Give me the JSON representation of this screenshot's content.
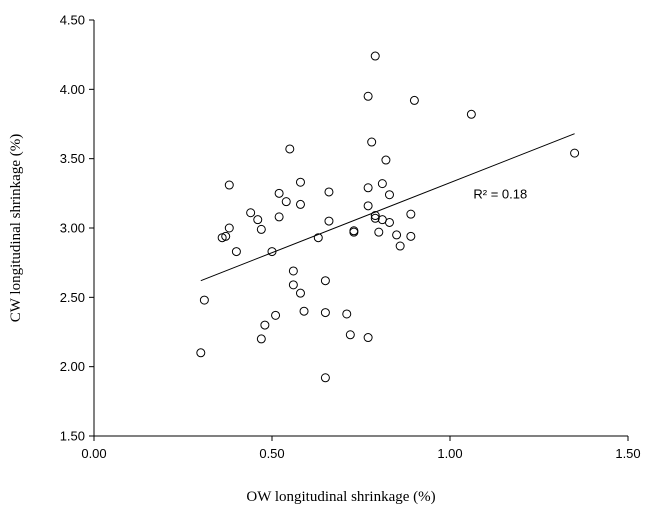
{
  "chart_data": {
    "type": "scatter",
    "title": "",
    "xlabel": "OW longitudinal  shrinkage  (%)",
    "ylabel": "CW longitudinal shrinkage (%)",
    "xlim": [
      0,
      1.5
    ],
    "ylim": [
      1.5,
      4.5
    ],
    "xticks": [
      "0.00",
      "0.50",
      "1.00",
      "1.50"
    ],
    "yticks": [
      "1.50",
      "2.00",
      "2.50",
      "3.00",
      "3.50",
      "4.00",
      "4.50"
    ],
    "grid": false,
    "marker": "open-circle",
    "points": [
      {
        "x": 0.3,
        "y": 2.1
      },
      {
        "x": 0.31,
        "y": 2.48
      },
      {
        "x": 0.36,
        "y": 2.93
      },
      {
        "x": 0.37,
        "y": 2.94
      },
      {
        "x": 0.38,
        "y": 3.0
      },
      {
        "x": 0.38,
        "y": 3.31
      },
      {
        "x": 0.4,
        "y": 2.83
      },
      {
        "x": 0.44,
        "y": 3.11
      },
      {
        "x": 0.46,
        "y": 3.06
      },
      {
        "x": 0.47,
        "y": 2.99
      },
      {
        "x": 0.47,
        "y": 2.2
      },
      {
        "x": 0.48,
        "y": 2.3
      },
      {
        "x": 0.5,
        "y": 2.83
      },
      {
        "x": 0.51,
        "y": 2.37
      },
      {
        "x": 0.52,
        "y": 3.25
      },
      {
        "x": 0.52,
        "y": 3.08
      },
      {
        "x": 0.54,
        "y": 3.19
      },
      {
        "x": 0.55,
        "y": 3.57
      },
      {
        "x": 0.56,
        "y": 2.69
      },
      {
        "x": 0.56,
        "y": 2.59
      },
      {
        "x": 0.58,
        "y": 2.53
      },
      {
        "x": 0.58,
        "y": 3.33
      },
      {
        "x": 0.58,
        "y": 3.17
      },
      {
        "x": 0.59,
        "y": 2.4
      },
      {
        "x": 0.63,
        "y": 2.93
      },
      {
        "x": 0.65,
        "y": 2.62
      },
      {
        "x": 0.65,
        "y": 2.39
      },
      {
        "x": 0.65,
        "y": 1.92
      },
      {
        "x": 0.66,
        "y": 3.26
      },
      {
        "x": 0.66,
        "y": 3.05
      },
      {
        "x": 0.71,
        "y": 2.38
      },
      {
        "x": 0.72,
        "y": 2.23
      },
      {
        "x": 0.73,
        "y": 2.98
      },
      {
        "x": 0.73,
        "y": 2.97
      },
      {
        "x": 0.77,
        "y": 3.95
      },
      {
        "x": 0.77,
        "y": 3.29
      },
      {
        "x": 0.77,
        "y": 3.16
      },
      {
        "x": 0.77,
        "y": 2.21
      },
      {
        "x": 0.78,
        "y": 3.62
      },
      {
        "x": 0.79,
        "y": 3.09
      },
      {
        "x": 0.79,
        "y": 3.07
      },
      {
        "x": 0.79,
        "y": 4.24
      },
      {
        "x": 0.8,
        "y": 2.97
      },
      {
        "x": 0.81,
        "y": 3.32
      },
      {
        "x": 0.81,
        "y": 3.06
      },
      {
        "x": 0.82,
        "y": 3.49
      },
      {
        "x": 0.83,
        "y": 3.24
      },
      {
        "x": 0.83,
        "y": 3.04
      },
      {
        "x": 0.85,
        "y": 2.95
      },
      {
        "x": 0.86,
        "y": 2.87
      },
      {
        "x": 0.89,
        "y": 3.1
      },
      {
        "x": 0.89,
        "y": 2.94
      },
      {
        "x": 0.9,
        "y": 3.92
      },
      {
        "x": 1.06,
        "y": 3.82
      },
      {
        "x": 1.35,
        "y": 3.54
      }
    ],
    "trendline": {
      "type": "linear",
      "x": [
        0.3,
        1.35
      ],
      "y": [
        2.62,
        3.68
      ]
    },
    "annotation": "R² = 0.18",
    "annotation_at": {
      "x": 1.06,
      "y": 3.24
    }
  }
}
